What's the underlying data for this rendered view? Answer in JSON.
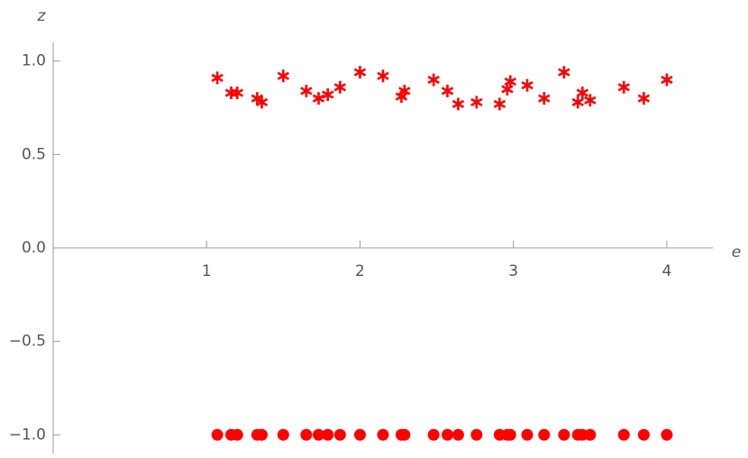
{
  "chart_data": {
    "type": "scatter",
    "x_label": "e",
    "y_label": "z",
    "x": [
      1.07,
      1.16,
      1.2,
      1.33,
      1.36,
      1.5,
      1.65,
      1.73,
      1.79,
      1.87,
      2.0,
      2.15,
      2.27,
      2.29,
      2.48,
      2.57,
      2.64,
      2.76,
      2.91,
      2.96,
      2.98,
      3.09,
      3.2,
      3.33,
      3.42,
      3.45,
      3.5,
      3.72,
      3.85,
      4.0
    ],
    "series": [
      {
        "marker": "asterisk",
        "color": "#ff0000",
        "values": [
          0.91,
          0.83,
          0.83,
          0.8,
          0.78,
          0.92,
          0.84,
          0.8,
          0.82,
          0.86,
          0.94,
          0.92,
          0.81,
          0.84,
          0.9,
          0.84,
          0.77,
          0.78,
          0.77,
          0.85,
          0.89,
          0.87,
          0.8,
          0.94,
          0.78,
          0.83,
          0.79,
          0.86,
          0.8,
          0.9
        ]
      },
      {
        "marker": "circle",
        "color": "#ff0000",
        "values": [
          -1,
          -1,
          -1,
          -1,
          -1,
          -1,
          -1,
          -1,
          -1,
          -1,
          -1,
          -1,
          -1,
          -1,
          -1,
          -1,
          -1,
          -1,
          -1,
          -1,
          -1,
          -1,
          -1,
          -1,
          -1,
          -1,
          -1,
          -1,
          -1,
          -1
        ]
      }
    ],
    "xlim": [
      0,
      4.3
    ],
    "ylim": [
      -1.1,
      1.1
    ],
    "xticks": [
      1,
      2,
      3,
      4
    ],
    "yticks": [
      {
        "value": 1,
        "label": "1.0"
      },
      {
        "value": 0.5,
        "label": "0.5"
      },
      {
        "value": 0,
        "label": "0.0"
      },
      {
        "value": -0.5,
        "label": "−0.5"
      },
      {
        "value": -1,
        "label": "−1.0"
      }
    ]
  }
}
